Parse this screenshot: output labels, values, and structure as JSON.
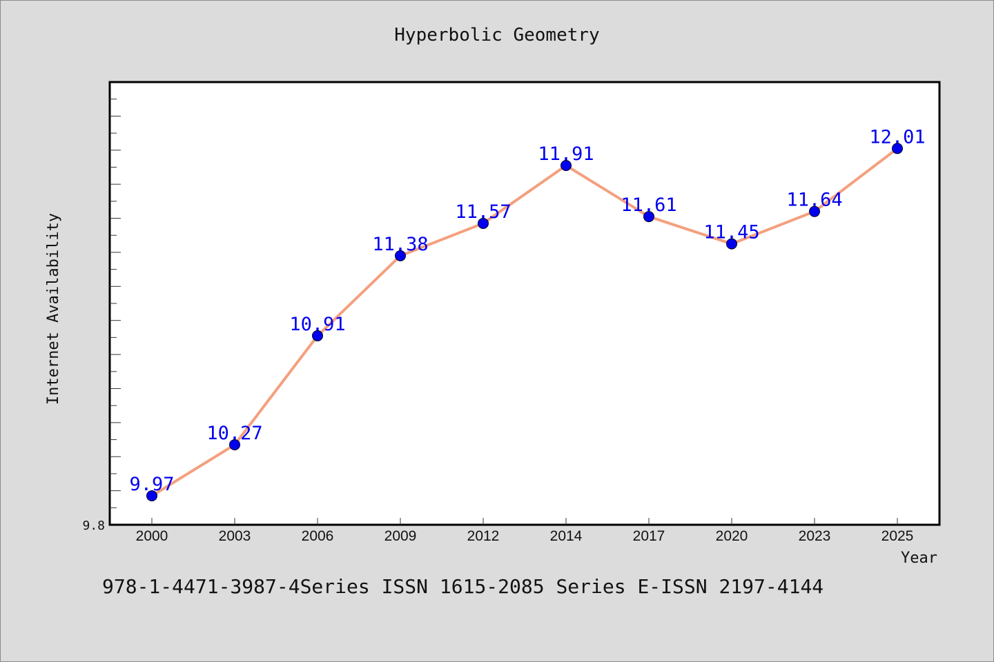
{
  "chart_data": {
    "type": "line",
    "title": "Hyperbolic Geometry",
    "xlabel": "Year",
    "ylabel": "Internet Availability",
    "categories": [
      "2000",
      "2003",
      "2006",
      "2009",
      "2012",
      "2014",
      "2017",
      "2020",
      "2023",
      "2025"
    ],
    "series": [
      {
        "values": [
          9.97,
          10.27,
          10.91,
          11.38,
          11.57,
          11.91,
          11.61,
          11.45,
          11.64,
          12.01
        ],
        "data_labels": [
          "9.97",
          "10.27",
          "10.91",
          "11.38",
          "11.57",
          "11.91",
          "11.61",
          "11.45",
          "11.64",
          "12.01"
        ],
        "line_color": "#f4a07e",
        "marker_color": "#0000ee"
      }
    ],
    "ylim": [
      9.8,
      12.4
    ],
    "y_tick_labels": [
      "9.8"
    ],
    "grid": false,
    "legend": "none"
  },
  "footer": {
    "text": "978-1-4471-3987-4Series ISSN 1615-2085 Series E-ISSN 2197-4144"
  },
  "colors": {
    "background": "#dcdcdc",
    "plot_background": "#ffffff",
    "label_color": "#0000ee"
  }
}
